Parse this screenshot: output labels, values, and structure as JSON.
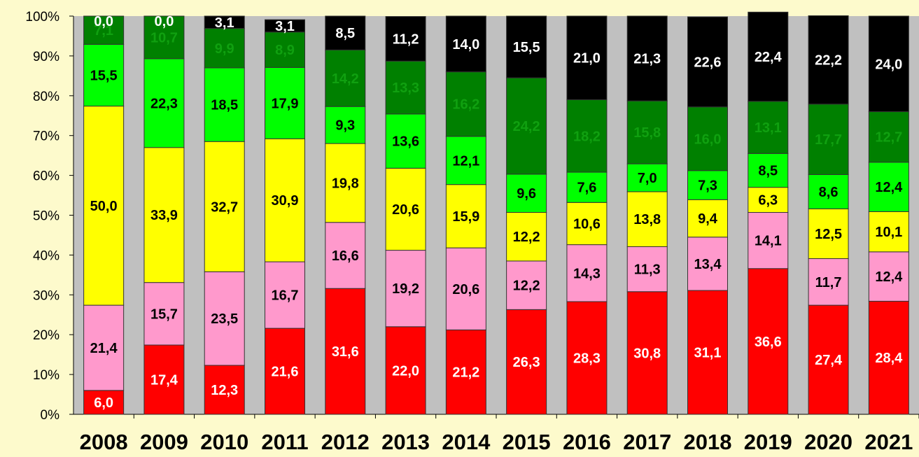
{
  "chart_data": {
    "type": "bar",
    "stacked": true,
    "percent_stacked": true,
    "title": "",
    "xlabel": "",
    "ylabel": "",
    "ylim": [
      0,
      100
    ],
    "ytick_labels": [
      "0%",
      "10%",
      "20%",
      "30%",
      "40%",
      "50%",
      "60%",
      "70%",
      "80%",
      "90%",
      "100%"
    ],
    "gridlines": false,
    "legend": "none",
    "categories": [
      "2008",
      "2009",
      "2010",
      "2011",
      "2012",
      "2013",
      "2014",
      "2015",
      "2016",
      "2017",
      "2018",
      "2019",
      "2020",
      "2021"
    ],
    "series": [
      {
        "color": "#ff0000",
        "label_color": "#ffffff",
        "values": [
          6.0,
          17.4,
          12.3,
          21.6,
          31.6,
          22.0,
          21.2,
          26.3,
          28.3,
          30.8,
          31.1,
          36.6,
          27.4,
          28.4
        ],
        "labels": [
          "6,0",
          "17,4",
          "12,3",
          "21,6",
          "31,6",
          "22,0",
          "21,2",
          "26,3",
          "28,3",
          "30,8",
          "31,1",
          "36,6",
          "27,4",
          "28,4"
        ]
      },
      {
        "color": "#ff99cc",
        "label_color": "#000000",
        "values": [
          21.4,
          15.7,
          23.5,
          16.7,
          16.6,
          19.2,
          20.6,
          12.2,
          14.3,
          11.3,
          13.4,
          14.1,
          11.7,
          12.4
        ],
        "labels": [
          "21,4",
          "15,7",
          "23,5",
          "16,7",
          "16,6",
          "19,2",
          "20,6",
          "12,2",
          "14,3",
          "11,3",
          "13,4",
          "14,1",
          "11,7",
          "12,4"
        ]
      },
      {
        "color": "#ffff00",
        "label_color": "#000000",
        "values": [
          50.0,
          33.9,
          32.7,
          30.9,
          19.8,
          20.6,
          15.9,
          12.2,
          10.6,
          13.8,
          9.4,
          6.3,
          12.5,
          10.1
        ],
        "labels": [
          "50,0",
          "33,9",
          "32,7",
          "30,9",
          "19,8",
          "20,6",
          "15,9",
          "12,2",
          "10,6",
          "13,8",
          "9,4",
          "6,3",
          "12,5",
          "10,1"
        ]
      },
      {
        "color": "#00ff00",
        "label_color": "#000000",
        "values": [
          15.5,
          22.3,
          18.5,
          17.9,
          9.3,
          13.6,
          12.1,
          9.6,
          7.6,
          7.0,
          7.3,
          8.5,
          8.6,
          12.4
        ],
        "labels": [
          "15,5",
          "22,3",
          "18,5",
          "17,9",
          "9,3",
          "13,6",
          "12,1",
          "9,6",
          "7,6",
          "7,0",
          "7,3",
          "8,5",
          "8,6",
          "12,4"
        ]
      },
      {
        "color": "#008000",
        "label_color": "#10a010",
        "values": [
          7.1,
          10.7,
          9.9,
          8.9,
          14.2,
          13.3,
          16.2,
          24.2,
          18.2,
          15.8,
          16.0,
          13.1,
          17.7,
          12.7
        ],
        "labels": [
          "7,1",
          "10,7",
          "9,9",
          "8,9",
          "14,2",
          "13,3",
          "16,2",
          "24,2",
          "18,2",
          "15,8",
          "16,0",
          "13,1",
          "17,7",
          "12,7"
        ]
      },
      {
        "color": "#000000",
        "label_color": "#ffffff",
        "values": [
          0.0,
          0.0,
          3.1,
          3.1,
          8.5,
          11.2,
          14.0,
          15.5,
          21.0,
          21.3,
          22.6,
          22.4,
          22.2,
          24.0
        ],
        "labels": [
          "0,0",
          "0,0",
          "3,1",
          "3,1",
          "8,5",
          "11,2",
          "14,0",
          "15,5",
          "21,0",
          "21,3",
          "22,6",
          "22,4",
          "22,2",
          "24,0"
        ]
      }
    ],
    "plot_background": "#c0c0c0",
    "page_background": "#fdfacc"
  }
}
